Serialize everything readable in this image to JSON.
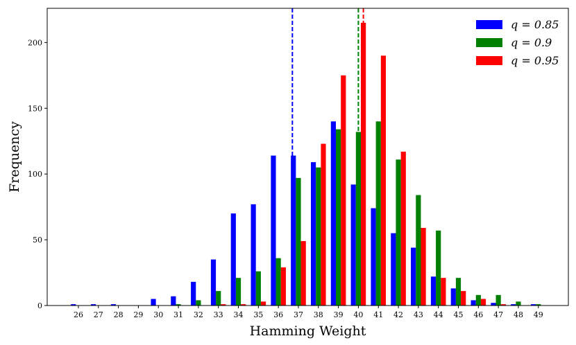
{
  "chart_data": {
    "type": "bar",
    "title": "",
    "xlabel": "Hamming Weight",
    "ylabel": "Frequency",
    "categories": [
      26,
      27,
      28,
      29,
      30,
      31,
      32,
      33,
      34,
      35,
      36,
      37,
      38,
      39,
      40,
      41,
      42,
      43,
      44,
      45,
      46,
      47,
      48,
      49
    ],
    "ylim": [
      0,
      226
    ],
    "yticks": [
      0,
      50,
      100,
      150,
      200
    ],
    "legend_position": "top-right",
    "series": [
      {
        "name": "q = 0.85",
        "color": "#0000ff",
        "values": [
          1,
          1,
          1,
          0,
          5,
          7,
          18,
          35,
          70,
          77,
          114,
          114,
          109,
          140,
          92,
          74,
          55,
          44,
          22,
          13,
          4,
          2,
          1,
          1
        ],
        "mean_line": 36.7
      },
      {
        "name": "q = 0.9",
        "color": "#008000",
        "values": [
          0,
          0,
          0,
          0,
          0,
          1,
          4,
          11,
          21,
          26,
          36,
          97,
          105,
          134,
          132,
          140,
          111,
          84,
          57,
          21,
          8,
          8,
          3,
          1
        ],
        "mean_line": 40.0
      },
      {
        "name": "q = 0.95",
        "color": "#ff0000",
        "values": [
          0,
          0,
          0,
          0,
          0,
          0,
          0,
          1,
          1,
          3,
          29,
          49,
          123,
          175,
          215,
          190,
          117,
          59,
          21,
          11,
          5,
          1,
          0,
          0
        ],
        "mean_line": 40.25
      }
    ]
  }
}
